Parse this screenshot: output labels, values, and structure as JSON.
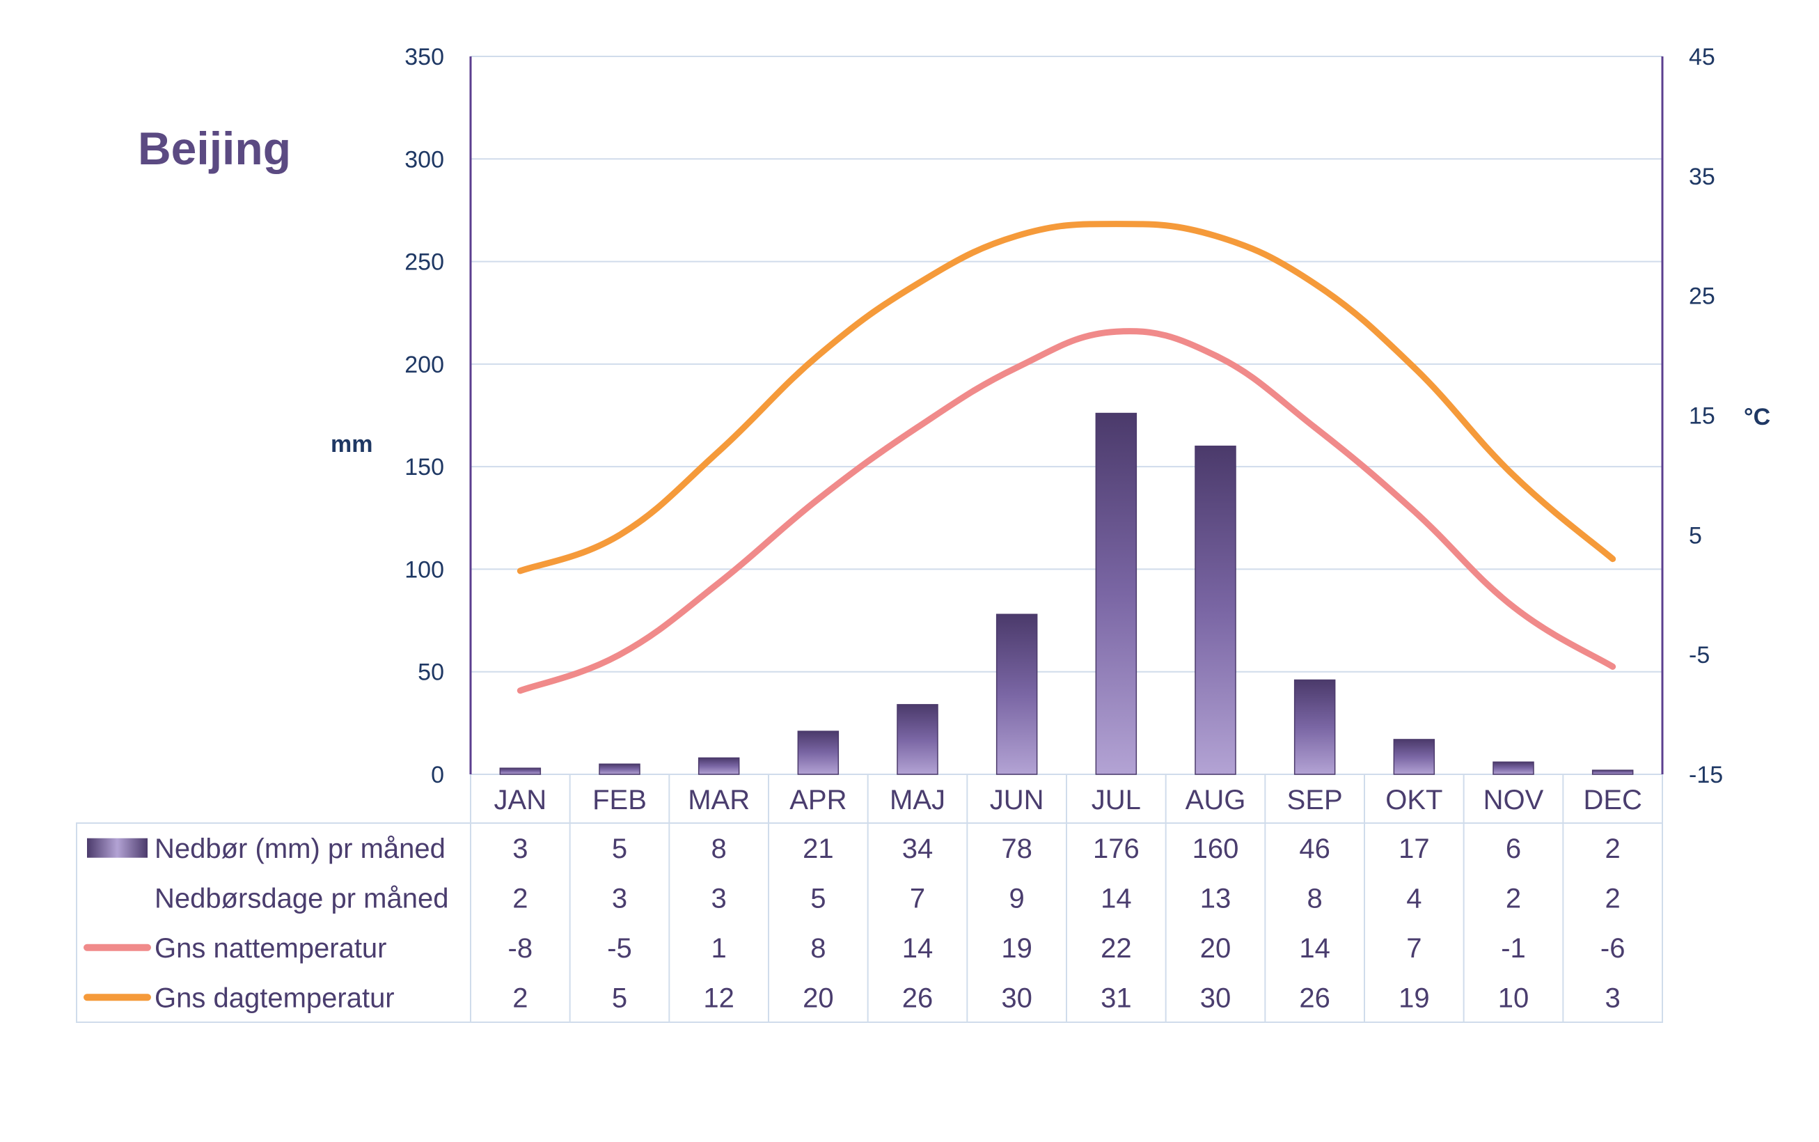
{
  "chart_data": {
    "type": "bar",
    "title": "Beijing",
    "categories": [
      "JAN",
      "FEB",
      "MAR",
      "APR",
      "MAJ",
      "JUN",
      "JUL",
      "AUG",
      "SEP",
      "OKT",
      "NOV",
      "DEC"
    ],
    "y_left": {
      "label": "mm",
      "ylim": [
        0,
        350
      ],
      "ticks": [
        "0",
        "50",
        "100",
        "150",
        "200",
        "250",
        "300",
        "350"
      ]
    },
    "y_right": {
      "label": "°C",
      "ylim": [
        -15,
        45
      ],
      "ticks": [
        "-15",
        "-5",
        "5",
        "15",
        "25",
        "35",
        "45"
      ]
    },
    "grid": true,
    "legend": "table-below",
    "series": [
      {
        "name": "Nedbør (mm) pr måned",
        "type": "bar",
        "axis": "left",
        "values": [
          3,
          5,
          8,
          21,
          34,
          78,
          176,
          160,
          46,
          17,
          6,
          2
        ]
      },
      {
        "name": "Nedbørsdage pr måned",
        "type": "table",
        "values": [
          2,
          3,
          3,
          5,
          7,
          9,
          14,
          13,
          8,
          4,
          2,
          2
        ]
      },
      {
        "name": "Gns nattemperatur",
        "type": "line",
        "axis": "right",
        "color": "#f08a8a",
        "values": [
          -8,
          -5,
          1,
          8,
          14,
          19,
          22,
          20,
          14,
          7,
          -1,
          -6
        ]
      },
      {
        "name": "Gns dagtemperatur",
        "type": "line",
        "axis": "right",
        "color": "#f59a3a",
        "values": [
          2,
          5,
          12,
          20,
          26,
          30,
          31,
          30,
          26,
          19,
          10,
          3
        ]
      }
    ]
  },
  "colors": {
    "bar_dark": "#4b3a6b",
    "bar_light": "#b3a3d4",
    "grid": "#d0dceb",
    "axis": "#5b3f8f",
    "text": "#4a3d6e"
  }
}
